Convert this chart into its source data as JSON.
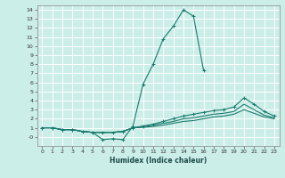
{
  "xlabel": "Humidex (Indice chaleur)",
  "background_color": "#cceee8",
  "grid_color": "#ffffff",
  "line_color": "#1a7a6e",
  "xlim": [
    -0.5,
    23.5
  ],
  "ylim": [
    -1.0,
    14.5
  ],
  "xticks": [
    0,
    1,
    2,
    3,
    4,
    5,
    6,
    7,
    8,
    9,
    10,
    11,
    12,
    13,
    14,
    15,
    16,
    17,
    18,
    19,
    20,
    21,
    22,
    23
  ],
  "yticks": [
    0,
    1,
    2,
    3,
    4,
    5,
    6,
    7,
    8,
    9,
    10,
    11,
    12,
    13,
    14
  ],
  "series": [
    {
      "x": [
        0,
        1,
        2,
        3,
        4,
        5,
        6,
        7,
        8,
        9,
        10,
        11,
        12,
        13,
        14,
        15,
        16,
        17,
        18,
        19,
        20,
        21,
        22,
        23
      ],
      "y": [
        1.0,
        1.0,
        0.8,
        0.8,
        0.6,
        0.5,
        -0.3,
        -0.2,
        -0.3,
        1.2,
        5.8,
        8.0,
        10.8,
        12.2,
        14.0,
        13.3,
        7.3,
        null,
        null,
        null,
        null,
        null,
        null,
        null
      ],
      "marker": true
    },
    {
      "x": [
        0,
        1,
        2,
        3,
        4,
        5,
        6,
        7,
        8,
        9,
        10,
        11,
        12,
        13,
        14,
        15,
        16,
        17,
        18,
        19,
        20,
        21,
        22,
        23
      ],
      "y": [
        1.0,
        1.0,
        0.8,
        0.8,
        0.6,
        0.5,
        0.5,
        0.5,
        0.6,
        1.0,
        1.2,
        1.4,
        1.7,
        2.0,
        2.3,
        2.5,
        2.7,
        2.9,
        3.0,
        3.3,
        4.3,
        3.6,
        2.8,
        2.3
      ],
      "marker": true
    },
    {
      "x": [
        0,
        1,
        2,
        3,
        4,
        5,
        6,
        7,
        8,
        9,
        10,
        11,
        12,
        13,
        14,
        15,
        16,
        17,
        18,
        19,
        20,
        21,
        22,
        23
      ],
      "y": [
        1.0,
        1.0,
        0.8,
        0.8,
        0.6,
        0.5,
        0.5,
        0.5,
        0.6,
        1.0,
        1.1,
        1.3,
        1.5,
        1.7,
        2.0,
        2.1,
        2.3,
        2.5,
        2.6,
        2.8,
        3.6,
        3.0,
        2.4,
        2.1
      ],
      "marker": false
    },
    {
      "x": [
        0,
        1,
        2,
        3,
        4,
        5,
        6,
        7,
        8,
        9,
        10,
        11,
        12,
        13,
        14,
        15,
        16,
        17,
        18,
        19,
        20,
        21,
        22,
        23
      ],
      "y": [
        1.0,
        1.0,
        0.8,
        0.8,
        0.6,
        0.5,
        0.5,
        0.5,
        0.6,
        1.0,
        1.05,
        1.15,
        1.3,
        1.5,
        1.7,
        1.8,
        2.0,
        2.2,
        2.3,
        2.5,
        3.0,
        2.6,
        2.2,
        2.0
      ],
      "marker": false
    }
  ]
}
